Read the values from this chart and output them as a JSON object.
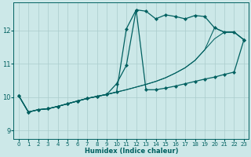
{
  "xlabel": "Humidex (Indice chaleur)",
  "xlim": [
    -0.5,
    23.5
  ],
  "ylim": [
    8.75,
    12.85
  ],
  "yticks": [
    9,
    10,
    11,
    12
  ],
  "xticks": [
    0,
    1,
    2,
    3,
    4,
    5,
    6,
    7,
    8,
    9,
    10,
    11,
    12,
    13,
    14,
    15,
    16,
    17,
    18,
    19,
    20,
    21,
    22,
    23
  ],
  "bg_color": "#cce8e8",
  "line_color": "#006060",
  "grid_color": "#aacccc",
  "lines": [
    {
      "x": [
        0,
        1,
        2,
        3,
        4,
        5,
        6,
        7,
        8,
        9,
        10,
        11,
        12,
        13,
        14,
        15,
        16,
        17,
        18,
        19,
        20,
        21,
        22,
        23
      ],
      "y": [
        10.05,
        9.55,
        9.62,
        9.65,
        9.72,
        9.8,
        9.88,
        9.96,
        10.02,
        10.08,
        10.15,
        12.05,
        12.62,
        12.58,
        12.35,
        12.47,
        12.42,
        12.35,
        12.45,
        12.42,
        12.08,
        11.95,
        11.95,
        11.72
      ],
      "marker": "D",
      "markersize": 2.2,
      "linewidth": 0.9
    },
    {
      "x": [
        0,
        1,
        2,
        3,
        4,
        5,
        6,
        7,
        8,
        9,
        10,
        11,
        12,
        13,
        14,
        15,
        16,
        17,
        18,
        19,
        20,
        21,
        22,
        23
      ],
      "y": [
        10.05,
        9.55,
        9.62,
        9.65,
        9.72,
        9.8,
        9.88,
        9.96,
        10.02,
        10.08,
        10.4,
        10.95,
        12.62,
        10.22,
        10.22,
        10.27,
        10.33,
        10.4,
        10.47,
        10.54,
        10.6,
        10.68,
        10.75,
        11.72
      ],
      "marker": "D",
      "markersize": 2.2,
      "linewidth": 0.9
    },
    {
      "x": [
        0,
        1,
        2,
        3,
        4,
        5,
        6,
        7,
        8,
        9,
        10,
        11,
        12,
        13,
        14,
        15,
        16,
        17,
        18,
        19,
        20,
        21,
        22,
        23
      ],
      "y": [
        10.05,
        9.55,
        9.62,
        9.65,
        9.72,
        9.8,
        9.88,
        9.96,
        10.02,
        10.08,
        10.15,
        10.22,
        10.3,
        10.38,
        10.47,
        10.58,
        10.72,
        10.88,
        11.1,
        11.42,
        12.08,
        11.95,
        11.95,
        11.72
      ],
      "marker": null,
      "markersize": 0,
      "linewidth": 0.75
    },
    {
      "x": [
        0,
        1,
        2,
        3,
        4,
        5,
        6,
        7,
        8,
        9,
        10,
        11,
        12,
        13,
        14,
        15,
        16,
        17,
        18,
        19,
        20,
        21,
        22,
        23
      ],
      "y": [
        10.05,
        9.55,
        9.62,
        9.65,
        9.72,
        9.8,
        9.88,
        9.96,
        10.02,
        10.08,
        10.15,
        10.22,
        10.3,
        10.38,
        10.47,
        10.58,
        10.72,
        10.88,
        11.1,
        11.42,
        11.75,
        11.95,
        11.95,
        11.72
      ],
      "marker": null,
      "markersize": 0,
      "linewidth": 0.75
    }
  ]
}
